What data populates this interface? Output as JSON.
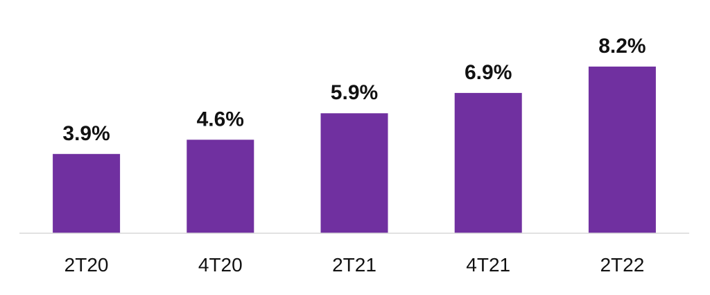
{
  "chart_data": {
    "type": "bar",
    "categories": [
      "2T20",
      "4T20",
      "2T21",
      "4T21",
      "2T22"
    ],
    "values": [
      3.9,
      4.6,
      5.9,
      6.9,
      8.2
    ],
    "value_labels": [
      "3.9%",
      "4.6%",
      "5.9%",
      "6.9%",
      "8.2%"
    ],
    "title": "",
    "xlabel": "",
    "ylabel": "",
    "ylim": [
      0,
      11.2
    ],
    "grid": false,
    "legend": "none",
    "bar_color": "#7030A0",
    "axis_color": "#D9D9D9"
  }
}
